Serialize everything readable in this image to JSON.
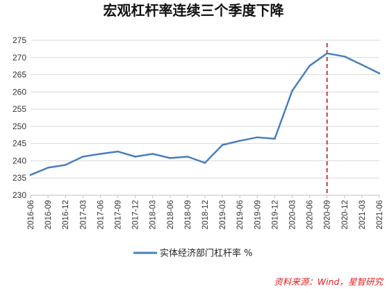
{
  "chart_data": {
    "type": "line",
    "title": "宏观杠杆率连续三个季度下降",
    "categories": [
      "2016-06",
      "2016-09",
      "2016-12",
      "2017-03",
      "2017-06",
      "2017-09",
      "2017-12",
      "2018-03",
      "2018-06",
      "2018-09",
      "2018-12",
      "2019-03",
      "2019-06",
      "2019-09",
      "2019-12",
      "2020-03",
      "2020-06",
      "2020-09",
      "2020-12",
      "2021-03",
      "2021-06"
    ],
    "series": [
      {
        "name": "实体经济部门杠杆率 %",
        "color": "#4a7ebb",
        "values": [
          235.9,
          238.0,
          238.8,
          241.2,
          242.0,
          242.7,
          241.2,
          242.0,
          240.8,
          241.2,
          239.4,
          244.6,
          245.8,
          246.8,
          246.4,
          260.3,
          267.6,
          271.2,
          270.3,
          267.9,
          265.4
        ]
      }
    ],
    "ylim": [
      230,
      275
    ],
    "yticks": [
      230,
      235,
      240,
      245,
      250,
      255,
      260,
      265,
      270,
      275
    ],
    "reference_line": {
      "x": "2020-09",
      "style": "dashed",
      "color": "#c0282b"
    },
    "grid": "horizontal",
    "legend_position": "bottom-center",
    "source": "资料来源：Wind，星智研究"
  }
}
